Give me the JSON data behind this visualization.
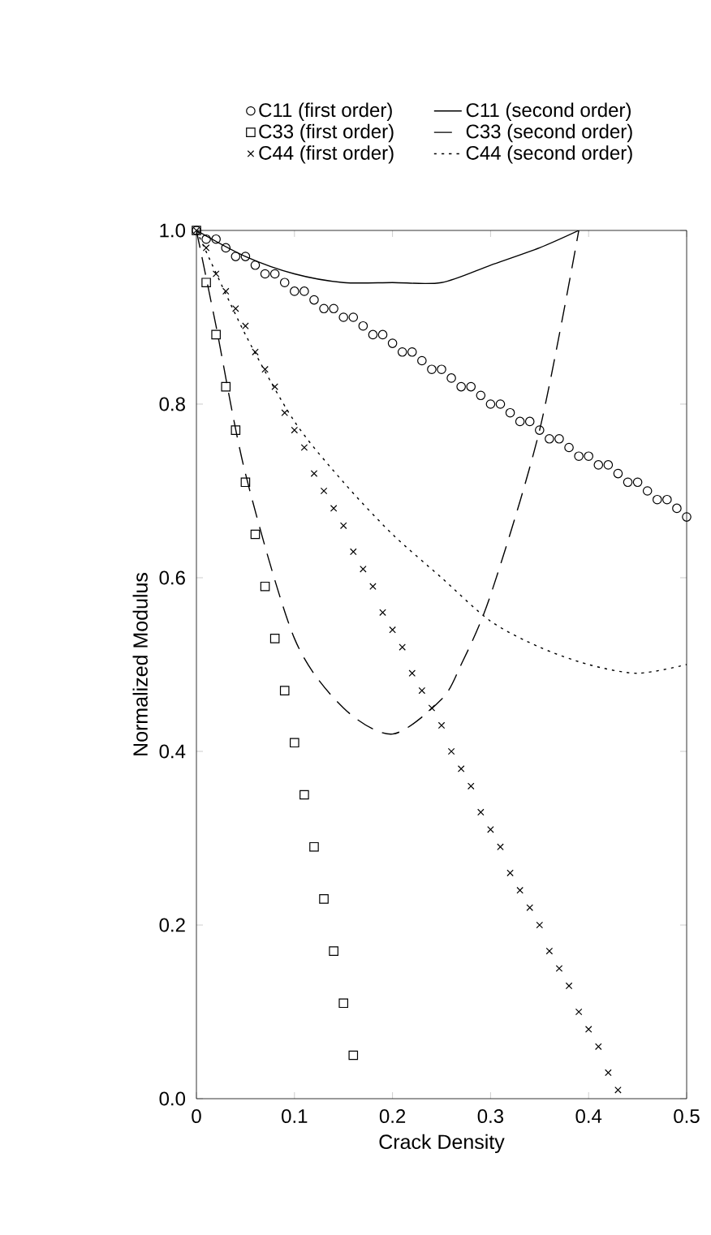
{
  "chart_data": {
    "type": "scatter",
    "xlabel": "Crack Density",
    "ylabel": "Normalized Modulus",
    "xlim": [
      0,
      0.5
    ],
    "ylim": [
      0,
      1.0
    ],
    "xticks": [
      0,
      0.1,
      0.2,
      0.3,
      0.4,
      0.5
    ],
    "yticks": [
      {
        "value": 0,
        "label": "0.0"
      },
      0.2,
      0.4,
      0.6,
      0.8,
      {
        "value": 1,
        "label": "1.0"
      }
    ],
    "legend": "top",
    "grid": false,
    "series": [
      {
        "name": "C11 (first order)",
        "marker": "circle",
        "color": "#000000",
        "x": [
          0,
          0.01,
          0.02,
          0.03,
          0.04,
          0.05,
          0.06,
          0.07,
          0.08,
          0.09,
          0.1,
          0.11,
          0.12,
          0.13,
          0.14,
          0.15,
          0.16,
          0.17,
          0.18,
          0.19,
          0.2,
          0.21,
          0.22,
          0.23,
          0.24,
          0.25,
          0.26,
          0.27,
          0.28,
          0.29,
          0.3,
          0.31,
          0.32,
          0.33,
          0.34,
          0.35,
          0.36,
          0.37,
          0.38,
          0.39,
          0.4,
          0.41,
          0.42,
          0.43,
          0.44,
          0.45,
          0.46,
          0.47,
          0.48,
          0.49,
          0.5
        ],
        "values": [
          1.0,
          0.99,
          0.99,
          0.98,
          0.97,
          0.97,
          0.96,
          0.95,
          0.95,
          0.94,
          0.93,
          0.93,
          0.92,
          0.91,
          0.91,
          0.9,
          0.9,
          0.89,
          0.88,
          0.88,
          0.87,
          0.86,
          0.86,
          0.85,
          0.84,
          0.84,
          0.83,
          0.82,
          0.82,
          0.81,
          0.8,
          0.8,
          0.79,
          0.78,
          0.78,
          0.77,
          0.76,
          0.76,
          0.75,
          0.74,
          0.74,
          0.73,
          0.73,
          0.72,
          0.71,
          0.71,
          0.7,
          0.69,
          0.69,
          0.68,
          0.67
        ]
      },
      {
        "name": "C11 (second order)",
        "type": "line",
        "line_style": "solid",
        "color": "#000000",
        "x": [
          0,
          0.05,
          0.1,
          0.15,
          0.2,
          0.25,
          0.3,
          0.35,
          0.39
        ],
        "values": [
          1.0,
          0.97,
          0.95,
          0.94,
          0.94,
          0.94,
          0.96,
          0.98,
          1.0
        ]
      },
      {
        "name": "C33 (first order)",
        "marker": "square",
        "color": "#000000",
        "x": [
          0,
          0.01,
          0.02,
          0.03,
          0.04,
          0.05,
          0.06,
          0.07,
          0.08,
          0.09,
          0.1,
          0.11,
          0.12,
          0.13,
          0.14,
          0.15,
          0.16
        ],
        "values": [
          1.0,
          0.94,
          0.88,
          0.82,
          0.77,
          0.71,
          0.65,
          0.59,
          0.53,
          0.47,
          0.41,
          0.35,
          0.29,
          0.23,
          0.17,
          0.11,
          0.05
        ]
      },
      {
        "name": "C33 (second order)",
        "type": "line",
        "line_style": "dashed",
        "color": "#000000",
        "x": [
          0,
          0.02,
          0.05,
          0.1,
          0.15,
          0.2,
          0.25,
          0.27,
          0.3,
          0.35,
          0.39
        ],
        "values": [
          1.0,
          0.89,
          0.72,
          0.53,
          0.45,
          0.42,
          0.46,
          0.5,
          0.58,
          0.77,
          1.0
        ]
      },
      {
        "name": "C44 (first order)",
        "marker": "cross",
        "color": "#000000",
        "x": [
          0,
          0.01,
          0.02,
          0.03,
          0.04,
          0.05,
          0.06,
          0.07,
          0.08,
          0.09,
          0.1,
          0.11,
          0.12,
          0.13,
          0.14,
          0.15,
          0.16,
          0.17,
          0.18,
          0.19,
          0.2,
          0.21,
          0.22,
          0.23,
          0.24,
          0.25,
          0.26,
          0.27,
          0.28,
          0.29,
          0.3,
          0.31,
          0.32,
          0.33,
          0.34,
          0.35,
          0.36,
          0.37,
          0.38,
          0.39,
          0.4,
          0.41,
          0.42,
          0.43
        ],
        "values": [
          1.0,
          0.98,
          0.95,
          0.93,
          0.91,
          0.89,
          0.86,
          0.84,
          0.82,
          0.79,
          0.77,
          0.75,
          0.72,
          0.7,
          0.68,
          0.66,
          0.63,
          0.61,
          0.59,
          0.56,
          0.54,
          0.52,
          0.49,
          0.47,
          0.45,
          0.43,
          0.4,
          0.38,
          0.36,
          0.33,
          0.31,
          0.29,
          0.26,
          0.24,
          0.22,
          0.2,
          0.17,
          0.15,
          0.13,
          0.1,
          0.08,
          0.06,
          0.03,
          0.01
        ]
      },
      {
        "name": "C44 (second order)",
        "type": "line",
        "line_style": "dotted",
        "color": "#000000",
        "x": [
          0,
          0.05,
          0.1,
          0.15,
          0.2,
          0.25,
          0.3,
          0.35,
          0.4,
          0.45,
          0.5
        ],
        "values": [
          1.0,
          0.88,
          0.78,
          0.71,
          0.65,
          0.6,
          0.55,
          0.52,
          0.5,
          0.49,
          0.5
        ]
      }
    ]
  }
}
